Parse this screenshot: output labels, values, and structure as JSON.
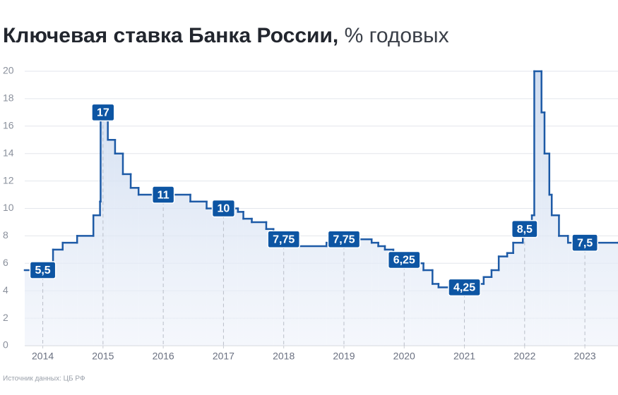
{
  "chart_data": {
    "type": "step",
    "title": "Ключевая ставка Банка России,",
    "subtitle": "% годовых",
    "source": "Источник данных: ЦБ РФ",
    "xlim": [
      2013.7,
      2023.55
    ],
    "xticks": [
      2014,
      2015,
      2016,
      2017,
      2018,
      2019,
      2020,
      2021,
      2022,
      2023
    ],
    "ylim": [
      0,
      20
    ],
    "yticks": [
      0,
      2,
      4,
      6,
      8,
      10,
      12,
      14,
      16,
      18,
      20
    ],
    "grid": true,
    "series": [
      {
        "name": "Ключевая ставка",
        "color": "#1d5aa6",
        "x": [
          2013.7,
          2014.17,
          2014.33,
          2014.57,
          2014.84,
          2014.95,
          2014.96,
          2015.08,
          2015.2,
          2015.33,
          2015.46,
          2015.59,
          2016.45,
          2016.72,
          2017.24,
          2017.33,
          2017.47,
          2017.71,
          2017.83,
          2017.96,
          2018.12,
          2018.24,
          2018.71,
          2018.96,
          2019.46,
          2019.57,
          2019.68,
          2019.82,
          2019.96,
          2020.11,
          2020.32,
          2020.47,
          2020.57,
          2021.22,
          2021.32,
          2021.45,
          2021.57,
          2021.71,
          2021.81,
          2021.97,
          2022.12,
          2022.16,
          2022.28,
          2022.33,
          2022.41,
          2022.45,
          2022.57,
          2022.72,
          2023.55
        ],
        "values": [
          5.5,
          7,
          7.5,
          8,
          9.5,
          10.5,
          17,
          15,
          14,
          12.5,
          11.5,
          11,
          10.5,
          10,
          9.75,
          9.25,
          9,
          8.5,
          8.25,
          7.75,
          7.5,
          7.25,
          7.5,
          7.75,
          7.5,
          7.25,
          7,
          6.5,
          6.25,
          6,
          5.5,
          4.5,
          4.25,
          4.5,
          5,
          5.5,
          6.5,
          6.75,
          7.5,
          8.5,
          9.5,
          20,
          17,
          14,
          11,
          9.5,
          8,
          7.5,
          7.5
        ]
      }
    ],
    "annotations": [
      {
        "x": 2014,
        "value": 5.5,
        "label": "5,5"
      },
      {
        "x": 2015,
        "value": 17,
        "label": "17"
      },
      {
        "x": 2016,
        "value": 11,
        "label": "11"
      },
      {
        "x": 2017,
        "value": 10,
        "label": "10"
      },
      {
        "x": 2018,
        "value": 7.75,
        "label": "7,75"
      },
      {
        "x": 2019,
        "value": 7.75,
        "label": "7,75"
      },
      {
        "x": 2020,
        "value": 6.25,
        "label": "6,25"
      },
      {
        "x": 2021,
        "value": 4.25,
        "label": "4,25"
      },
      {
        "x": 2022,
        "value": 8.5,
        "label": "8,5"
      },
      {
        "x": 2023,
        "value": 7.5,
        "label": "7,5"
      }
    ]
  }
}
